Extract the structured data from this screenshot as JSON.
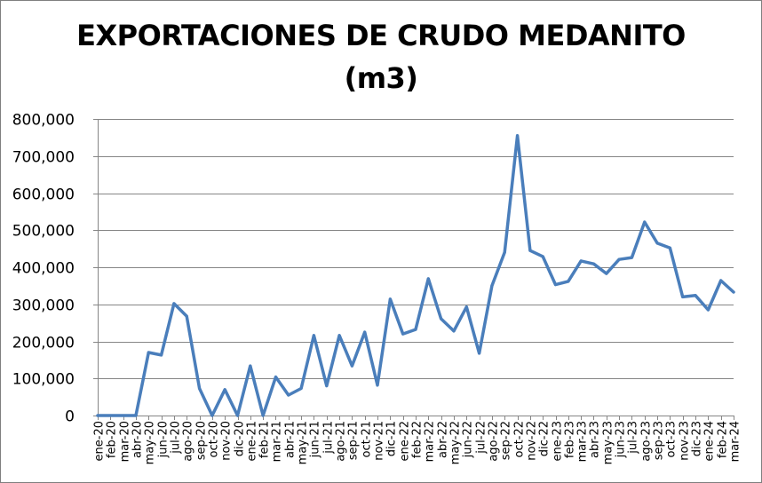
{
  "chart_data": {
    "type": "line",
    "title_lines": [
      "EXPORTACIONES DE CRUDO MEDANITO",
      "(m3)"
    ],
    "xlabel": "",
    "ylabel": "",
    "ylim": [
      0,
      800000
    ],
    "yticks": [
      0,
      100000,
      200000,
      300000,
      400000,
      500000,
      600000,
      700000,
      800000
    ],
    "ytick_labels": [
      "0",
      "100,000",
      "200,000",
      "300,000",
      "400,000",
      "500,000",
      "600,000",
      "700,000",
      "800,000"
    ],
    "grid": true,
    "legend": "none",
    "line_color": "#4a7ebb",
    "categories": [
      "ene-20",
      "feb-20",
      "mar-20",
      "abr-20",
      "may-20",
      "jun-20",
      "jul-20",
      "ago-20",
      "sep-20",
      "oct-20",
      "nov-20",
      "dic-20",
      "ene-21",
      "feb-21",
      "mar-21",
      "abr-21",
      "may-21",
      "jun-21",
      "jul-21",
      "ago-21",
      "sep-21",
      "oct-21",
      "nov-21",
      "dic-21",
      "ene-22",
      "feb-22",
      "mar-22",
      "abr-22",
      "may-22",
      "jun-22",
      "jul-22",
      "ago-22",
      "sep-22",
      "oct-22",
      "nov-22",
      "dic-22",
      "ene-23",
      "feb-23",
      "mar-23",
      "abr-23",
      "may-23",
      "jun-23",
      "jul-23",
      "ago-23",
      "sep-23",
      "oct-23",
      "nov-23",
      "dic-23",
      "ene-24",
      "feb-24",
      "mar-24"
    ],
    "values": [
      0,
      0,
      0,
      0,
      170000,
      163000,
      302000,
      268000,
      73000,
      0,
      70000,
      0,
      134000,
      0,
      104000,
      55000,
      73000,
      216000,
      80000,
      216000,
      134000,
      225000,
      82000,
      314000,
      220000,
      232000,
      369000,
      261000,
      228000,
      293000,
      168000,
      350000,
      440000,
      755000,
      445000,
      429000,
      353000,
      362000,
      417000,
      409000,
      383000,
      421000,
      426000,
      522000,
      465000,
      452000,
      320000,
      324000,
      285000,
      364000,
      333000
    ]
  }
}
